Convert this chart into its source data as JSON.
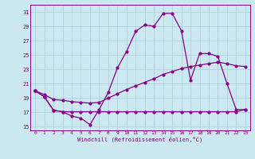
{
  "xlabel": "Windchill (Refroidissement éolien,°C)",
  "background_color": "#cce8f0",
  "line_color": "#880088",
  "grid_color": "#aaccdd",
  "xlim": [
    -0.5,
    23.5
  ],
  "ylim": [
    14.5,
    32
  ],
  "yticks": [
    15,
    17,
    19,
    21,
    23,
    25,
    27,
    29,
    31
  ],
  "xticks": [
    0,
    1,
    2,
    3,
    4,
    5,
    6,
    7,
    8,
    9,
    10,
    11,
    12,
    13,
    14,
    15,
    16,
    17,
    18,
    19,
    20,
    21,
    22,
    23
  ],
  "series1_x": [
    0,
    1,
    2,
    3,
    4,
    5,
    6,
    7,
    8,
    9,
    10,
    11,
    12,
    13,
    14,
    15,
    16,
    17,
    18,
    19,
    20,
    21,
    22,
    23
  ],
  "series1_y": [
    20.0,
    19.2,
    17.3,
    17.1,
    16.5,
    16.2,
    15.3,
    17.4,
    19.8,
    23.2,
    25.5,
    28.3,
    29.2,
    29.0,
    30.8,
    30.8,
    28.4,
    21.5,
    25.2,
    25.2,
    24.8,
    21.0,
    17.4,
    17.4
  ],
  "series2_x": [
    0,
    1,
    2,
    3,
    4,
    5,
    6,
    7,
    8,
    9,
    10,
    11,
    12,
    13,
    14,
    15,
    16,
    17,
    18,
    19,
    20,
    21,
    22,
    23
  ],
  "series2_y": [
    20.0,
    19.5,
    18.8,
    18.7,
    18.5,
    18.4,
    18.3,
    18.4,
    19.0,
    19.6,
    20.2,
    20.7,
    21.2,
    21.7,
    22.3,
    22.7,
    23.1,
    23.4,
    23.6,
    23.8,
    24.0,
    23.8,
    23.5,
    23.4
  ],
  "series3_x": [
    0,
    1,
    2,
    3,
    4,
    5,
    6,
    7,
    8,
    9,
    10,
    11,
    12,
    13,
    14,
    15,
    16,
    17,
    18,
    19,
    20,
    21,
    22,
    23
  ],
  "series3_y": [
    20.0,
    19.2,
    17.3,
    17.1,
    17.1,
    17.1,
    17.1,
    17.1,
    17.1,
    17.1,
    17.1,
    17.1,
    17.1,
    17.1,
    17.1,
    17.1,
    17.1,
    17.1,
    17.1,
    17.1,
    17.1,
    17.1,
    17.1,
    17.4
  ],
  "marker_size": 2.0,
  "line_width": 0.9
}
